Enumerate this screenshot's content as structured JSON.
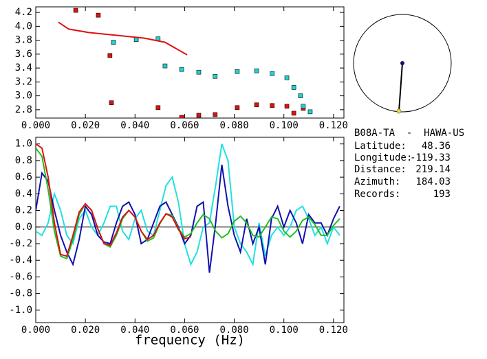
{
  "chart_data": [
    {
      "type": "scatter",
      "xlim": [
        0,
        0.1242
      ],
      "ylim": [
        2.68,
        4.28
      ],
      "xticks": [
        {
          "value": 0,
          "label": "0.000"
        },
        {
          "value": 0.02,
          "label": "0.020"
        },
        {
          "value": 0.04,
          "label": "0.040"
        },
        {
          "value": 0.06,
          "label": "0.060"
        },
        {
          "value": 0.08,
          "label": "0.080"
        },
        {
          "value": 0.1,
          "label": "0.100"
        },
        {
          "value": 0.12,
          "label": "0.120"
        }
      ],
      "yticks": [
        2.8,
        {
          "value": 3,
          "label": "3.0"
        },
        3.2,
        3.4,
        3.6,
        3.8,
        {
          "value": 4,
          "label": "4.0"
        },
        4.2
      ],
      "series": [
        {
          "color": "#e01010",
          "marker": "square",
          "x": [
            0.0161,
            0.0252,
            0.0299,
            0.0305,
            0.0493,
            0.0588,
            0.0657,
            0.0723,
            0.0812,
            0.089,
            0.0953,
            0.1012,
            0.104,
            0.1078
          ],
          "values": [
            4.23,
            4.16,
            3.58,
            2.9,
            2.83,
            2.69,
            2.72,
            2.73,
            2.83,
            2.87,
            2.86,
            2.85,
            2.75,
            2.82
          ]
        },
        {
          "color": "#20d0d0",
          "marker": "square",
          "x": [
            0.0313,
            0.0405,
            0.0493,
            0.0521,
            0.0588,
            0.0657,
            0.0723,
            0.0812,
            0.089,
            0.0953,
            0.1012,
            0.104,
            0.1067,
            0.1078,
            0.1106
          ],
          "values": [
            3.77,
            3.81,
            3.82,
            3.43,
            3.38,
            3.34,
            3.28,
            3.35,
            3.36,
            3.32,
            3.26,
            3.12,
            3.0,
            2.85,
            2.77
          ]
        },
        {
          "color": "#e01010",
          "marker": "line",
          "x": [
            0.0091,
            0.0133,
            0.0216,
            0.0327,
            0.0438,
            0.0521,
            0.061
          ],
          "values": [
            4.06,
            3.96,
            3.91,
            3.87,
            3.83,
            3.77,
            3.59
          ]
        }
      ]
    },
    {
      "type": "line",
      "x_label": "frequency (Hz)",
      "xlim": [
        0,
        0.1242
      ],
      "ylim": [
        -1.15,
        1.08
      ],
      "xticks": [
        {
          "value": 0,
          "label": "0.000"
        },
        {
          "value": 0.02,
          "label": "0.020"
        },
        {
          "value": 0.04,
          "label": "0.040"
        },
        {
          "value": 0.06,
          "label": "0.060"
        },
        {
          "value": 0.08,
          "label": "0.080"
        },
        {
          "value": 0.1,
          "label": "0.100"
        },
        {
          "value": 0.12,
          "label": "0.120"
        }
      ],
      "yticks": [
        {
          "value": -1,
          "label": "-1.0"
        },
        -0.8,
        -0.6,
        -0.4,
        -0.2,
        {
          "value": 0,
          "label": "0.0"
        },
        0.2,
        0.4,
        0.6,
        0.8,
        {
          "value": 1,
          "label": "1.0"
        }
      ],
      "x": [
        0,
        0.0025,
        0.005,
        0.0075,
        0.01,
        0.0125,
        0.015,
        0.0175,
        0.02,
        0.0225,
        0.025,
        0.0275,
        0.03,
        0.0325,
        0.035,
        0.0375,
        0.04,
        0.0425,
        0.045,
        0.0475,
        0.05,
        0.0525,
        0.055,
        0.0575,
        0.06,
        0.0625,
        0.065,
        0.0675,
        0.07,
        0.0725,
        0.075,
        0.0775,
        0.08,
        0.0825,
        0.085,
        0.0875,
        0.09,
        0.0925,
        0.095,
        0.0975,
        0.1,
        0.1025,
        0.105,
        0.1075,
        0.11,
        0.1125,
        0.115,
        0.1175,
        0.12,
        0.1225
      ],
      "series": [
        {
          "color": "#20e0e0",
          "values": [
            -0.05,
            -0.1,
            0.05,
            0.4,
            0.2,
            -0.1,
            -0.2,
            0.1,
            0.2,
            0.0,
            -0.1,
            0.05,
            0.25,
            0.25,
            -0.05,
            -0.15,
            0.1,
            0.2,
            -0.05,
            -0.1,
            0.2,
            0.5,
            0.6,
            0.3,
            -0.2,
            -0.45,
            -0.3,
            0.0,
            0.05,
            0.5,
            1.0,
            0.8,
            0.0,
            -0.2,
            -0.3,
            -0.45,
            0.05,
            -0.35,
            -0.1,
            0.0,
            -0.1,
            0.0,
            0.2,
            0.25,
            0.1,
            -0.1,
            0.0,
            -0.2,
            0.0,
            -0.1
          ]
        },
        {
          "color": "#1010b0",
          "values": [
            0.2,
            0.65,
            0.55,
            0.2,
            -0.1,
            -0.3,
            -0.45,
            -0.15,
            0.25,
            0.15,
            -0.1,
            -0.18,
            -0.2,
            0.05,
            0.25,
            0.3,
            0.15,
            -0.2,
            -0.15,
            0.05,
            0.25,
            0.3,
            0.15,
            0.0,
            -0.2,
            -0.1,
            0.25,
            0.3,
            -0.55,
            0.05,
            0.75,
            0.25,
            -0.1,
            -0.3,
            0.1,
            -0.2,
            0.0,
            -0.45,
            0.1,
            0.25,
            0.0,
            0.2,
            0.05,
            -0.2,
            0.15,
            0.05,
            0.05,
            -0.1,
            0.1,
            0.25
          ]
        },
        {
          "color": "#20c020",
          "values": [
            0.95,
            0.85,
            0.45,
            -0.05,
            -0.35,
            -0.38,
            -0.15,
            0.15,
            0.28,
            0.2,
            -0.02,
            -0.2,
            -0.24,
            -0.1,
            0.1,
            0.2,
            0.12,
            -0.05,
            -0.17,
            -0.13,
            0.04,
            0.16,
            0.14,
            -0.02,
            -0.12,
            -0.08,
            0.05,
            0.15,
            0.1,
            -0.05,
            -0.13,
            -0.08,
            0.07,
            0.13,
            0.05,
            -0.1,
            -0.12,
            0.0,
            0.12,
            0.1,
            -0.05,
            -0.12,
            -0.05,
            0.08,
            0.12,
            0.03,
            -0.1,
            -0.1,
            0.02,
            0.1
          ]
        },
        {
          "color": "#e01010",
          "values": [
            1.0,
            0.95,
            0.6,
            0.05,
            -0.33,
            -0.35,
            -0.1,
            0.18,
            0.28,
            0.2,
            -0.02,
            -0.2,
            -0.22,
            -0.07,
            0.12,
            0.2,
            0.12,
            -0.05,
            -0.15,
            -0.1,
            0.05,
            0.16,
            0.12,
            -0.03,
            -0.14,
            -0.12,
            null,
            null,
            null,
            null,
            null,
            null,
            null,
            null,
            null,
            null,
            null,
            null,
            null,
            null,
            null,
            null,
            null,
            null,
            null,
            null,
            null,
            null,
            null,
            null
          ]
        }
      ]
    }
  ],
  "info": {
    "station": "B08A-TA  -  HAWA-US",
    "rows": [
      [
        "Latitude:",
        48.36
      ],
      [
        "Longitude:",
        -119.33
      ],
      [
        "Distance:",
        219.14
      ],
      [
        "Azimuth:",
        184.03
      ],
      [
        "Records:",
        193
      ]
    ]
  }
}
